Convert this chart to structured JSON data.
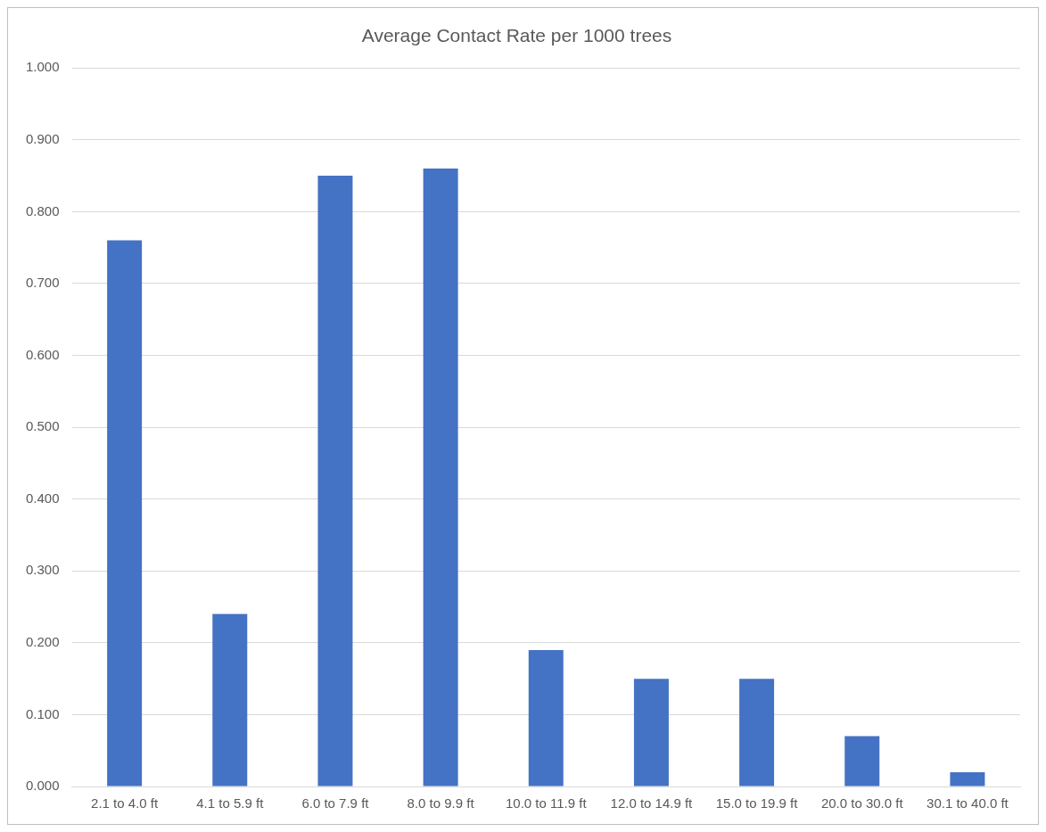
{
  "chart_data": {
    "type": "bar",
    "title": "Average Contact Rate per 1000 trees",
    "categories": [
      "2.1 to 4.0 ft",
      "4.1 to 5.9 ft",
      "6.0 to 7.9 ft",
      "8.0 to 9.9 ft",
      "10.0 to 11.9 ft",
      "12.0 to 14.9 ft",
      "15.0 to 19.9 ft",
      "20.0 to 30.0 ft",
      "30.1 to 40.0 ft"
    ],
    "values": [
      0.76,
      0.24,
      0.85,
      0.86,
      0.19,
      0.15,
      0.15,
      0.07,
      0.02
    ],
    "color": "#4472c4",
    "ylim": [
      0,
      1
    ],
    "yticks": [
      {
        "value": 0,
        "label": "0.000"
      },
      {
        "value": 0.1,
        "label": "0.100"
      },
      {
        "value": 0.2,
        "label": "0.200"
      },
      {
        "value": 0.3,
        "label": "0.300"
      },
      {
        "value": 0.4,
        "label": "0.400"
      },
      {
        "value": 0.5,
        "label": "0.500"
      },
      {
        "value": 0.6,
        "label": "0.600"
      },
      {
        "value": 0.7,
        "label": "0.700"
      },
      {
        "value": 0.8,
        "label": "0.800"
      },
      {
        "value": 0.9,
        "label": "0.900"
      },
      {
        "value": 1,
        "label": "1.000"
      }
    ],
    "grid": "y",
    "legend": false
  }
}
